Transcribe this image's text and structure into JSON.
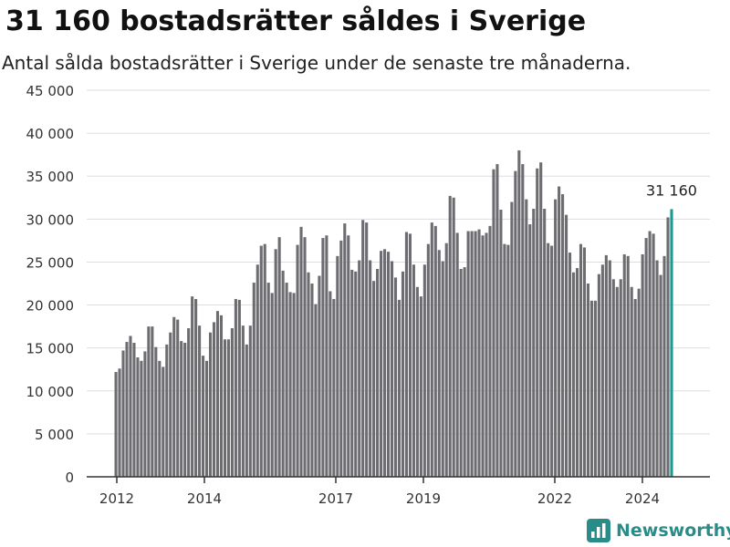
{
  "title": "31 160 bostadsrätter såldes i Sverige",
  "subtitle": "Antal sålda bostadsrätter i Sverige under de senaste tre månaderna.",
  "brand": {
    "name": "Newsworthy",
    "icon": "newsworthy-logo-icon",
    "color": "#2a8c88"
  },
  "colors": {
    "bar": "#6d6c71",
    "highlight": "#1a9a92",
    "grid": "#dddddd",
    "axis": "#333333"
  },
  "chart_data": {
    "type": "bar",
    "title": "31 160 bostadsrätter såldes i Sverige",
    "xlabel": "",
    "ylabel": "",
    "ylim": [
      0,
      45000
    ],
    "y_ticks": [
      0,
      5000,
      10000,
      15000,
      20000,
      25000,
      30000,
      35000,
      40000,
      45000
    ],
    "y_tick_labels": [
      "0",
      "5 000",
      "10 000",
      "15 000",
      "20 000",
      "25 000",
      "30 000",
      "35 000",
      "40 000",
      "45 000"
    ],
    "x_tick_labels": [
      "2012",
      "2014",
      "2017",
      "2019",
      "2022",
      "2024"
    ],
    "grid": true,
    "annotation": {
      "text": "31 160",
      "value": 31160,
      "target": "last"
    },
    "series": [
      {
        "segments": [
          [
            12200,
            12600,
            14700,
            15700,
            16400,
            15600,
            13900,
            13500,
            14600,
            17500,
            17500,
            15100,
            13500
          ],
          [
            12800,
            15400,
            16800,
            18600,
            18300,
            15800,
            15600,
            17300,
            21000,
            20700,
            17600,
            14100
          ],
          [
            13500,
            16800,
            18000,
            19300,
            18800,
            16000,
            16000,
            17300,
            20700,
            20600,
            17600,
            15400
          ],
          [
            17600,
            22600,
            24700,
            26900,
            27100,
            22600,
            21400,
            26500,
            27900
          ],
          [
            24000,
            22600,
            21500,
            21400,
            27000,
            29100,
            27900,
            23800,
            22500,
            20100,
            23400,
            27800,
            28100
          ],
          [
            21600,
            20700,
            25700,
            27500,
            29500,
            28100,
            24100,
            23900,
            25200,
            29900,
            29600,
            25200,
            22800
          ],
          [
            24200,
            26300,
            26500,
            26200,
            25100,
            23200,
            20600,
            23900,
            28500,
            28300,
            24700,
            22100,
            21000
          ],
          [
            24700,
            27100,
            29600,
            29200,
            26400,
            25100,
            27200,
            32700,
            32500,
            28400,
            24200,
            24400,
            28600
          ],
          [
            28600,
            28600,
            28800,
            28100,
            28400,
            29200,
            35800,
            36400,
            31100,
            27100,
            27000,
            32000,
            35600,
            38000
          ],
          [
            36400,
            32300,
            29400,
            31200,
            35900,
            36600,
            31200,
            27200,
            26900,
            32300,
            33800,
            32900,
            30500
          ],
          [
            26100,
            23800,
            24300,
            27100,
            26700,
            22500,
            20500,
            20500,
            23600,
            24700,
            25800,
            25200,
            23000,
            22100
          ],
          [
            23000,
            25900,
            25700,
            22100,
            20700,
            21900,
            25900,
            27800,
            28600,
            28300,
            25200,
            23500,
            25700,
            30200,
            31160
          ]
        ]
      }
    ]
  }
}
